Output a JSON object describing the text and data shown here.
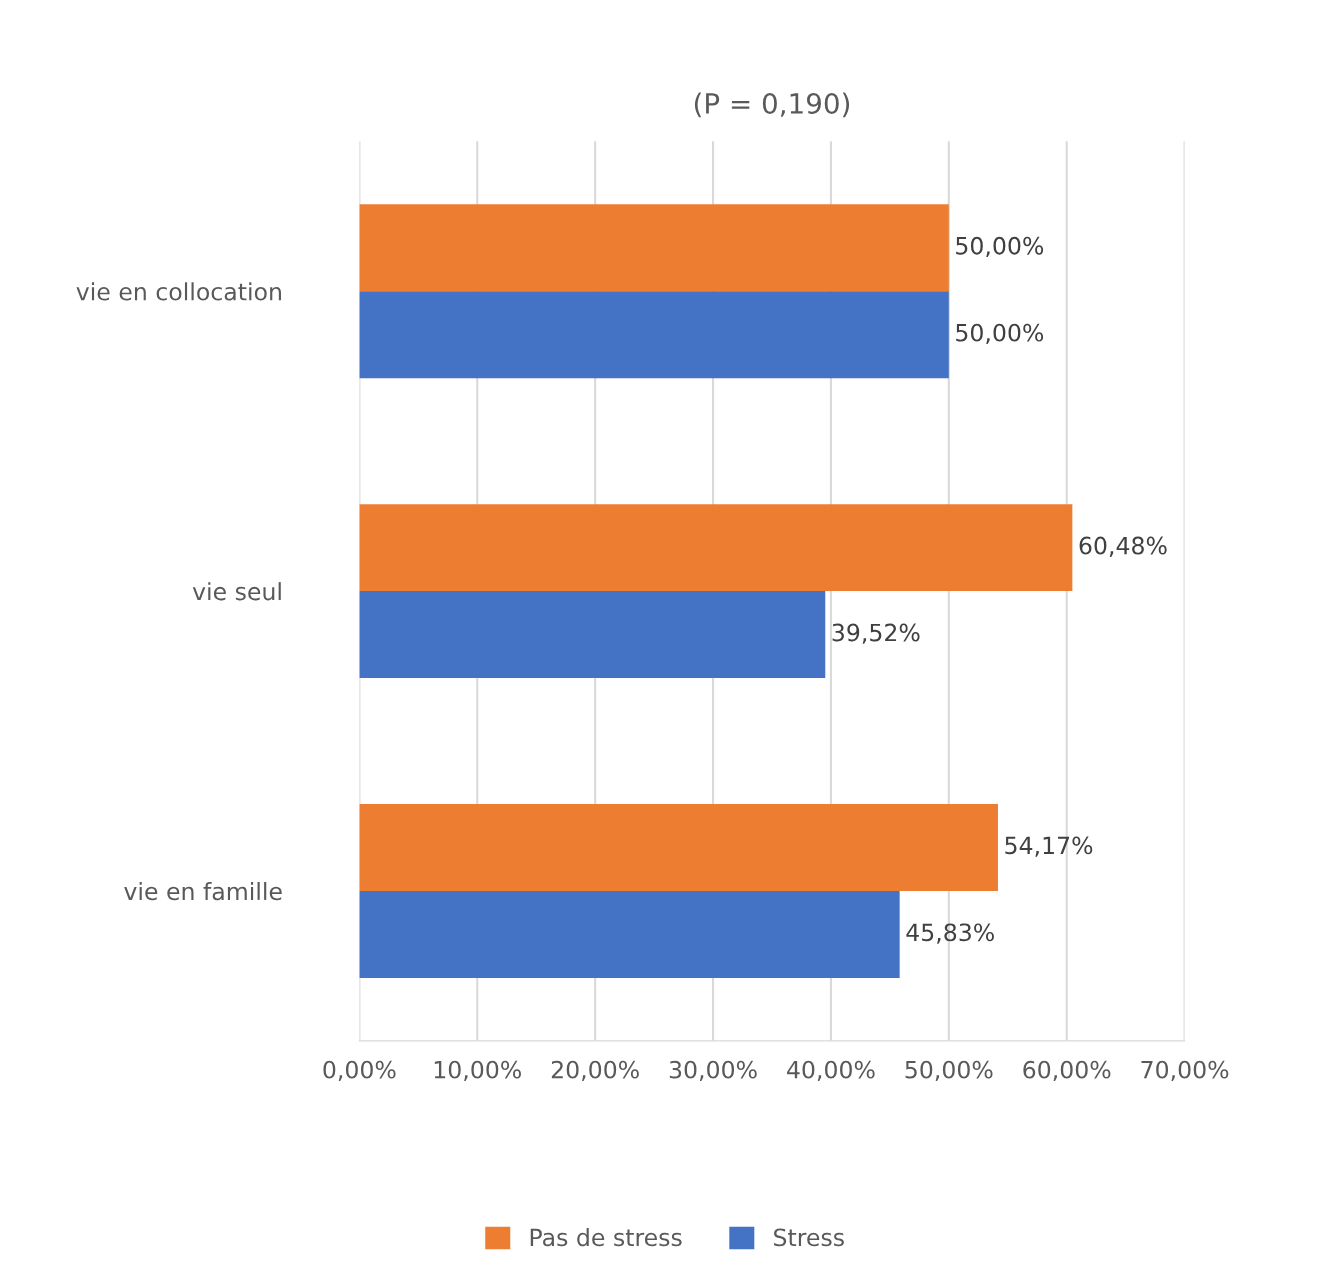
{
  "chart_data": {
    "type": "bar",
    "orientation": "horizontal",
    "title": "(P = 0,190)",
    "categories": [
      "vie en collocation",
      "vie seul",
      "vie en famille"
    ],
    "series": [
      {
        "name": "Pas de stress",
        "color": "#ed7d31",
        "values": [
          50.0,
          60.48,
          54.17
        ],
        "value_labels": [
          "50,00%",
          "60,48%",
          "54,17%"
        ]
      },
      {
        "name": "Stress",
        "color": "#4472c4",
        "values": [
          50.0,
          39.52,
          45.83
        ],
        "value_labels": [
          "50,00%",
          "39,52%",
          "45,83%"
        ]
      }
    ],
    "xlim": [
      0,
      70
    ],
    "xticks": [
      {
        "value": 0,
        "label": "0,00%"
      },
      {
        "value": 10,
        "label": "10,00%"
      },
      {
        "value": 20,
        "label": "20,00%"
      },
      {
        "value": 30,
        "label": "30,00%"
      },
      {
        "value": 40,
        "label": "40,00%"
      },
      {
        "value": 50,
        "label": "50,00%"
      },
      {
        "value": 60,
        "label": "60,00%"
      },
      {
        "value": 70,
        "label": "70,00%"
      }
    ],
    "grid": "x",
    "legend": "bottom"
  }
}
